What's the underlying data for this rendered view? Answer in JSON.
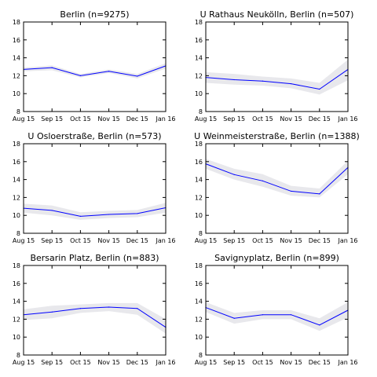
{
  "chart_data": [
    {
      "type": "line",
      "title": "Berlin (n=9275)",
      "x": [
        "Aug 15",
        "Sep 15",
        "Oct 15",
        "Nov 15",
        "Dec 15",
        "Jan 16"
      ],
      "y": [
        12.7,
        12.9,
        12.0,
        12.5,
        11.95,
        13.1
      ],
      "band_low": [
        12.5,
        12.6,
        11.8,
        12.3,
        11.7,
        12.8
      ],
      "band_high": [
        12.9,
        13.15,
        12.2,
        12.7,
        12.2,
        13.4
      ],
      "ylim": [
        8,
        18
      ],
      "yticks": [
        8,
        10,
        12,
        14,
        16,
        18
      ]
    },
    {
      "type": "line",
      "title": "U Rathaus Neukölln, Berlin (n=507)",
      "x": [
        "Aug 15",
        "Sep 15",
        "Oct 15",
        "Nov 15",
        "Dec 15",
        "Jan 16"
      ],
      "y": [
        11.8,
        11.55,
        11.4,
        11.1,
        10.5,
        12.7
      ],
      "band_low": [
        11.2,
        11.0,
        10.9,
        10.6,
        9.9,
        11.5
      ],
      "band_high": [
        12.4,
        12.2,
        11.9,
        11.7,
        11.2,
        13.8
      ],
      "ylim": [
        8,
        18
      ],
      "yticks": [
        8,
        10,
        12,
        14,
        16,
        18
      ]
    },
    {
      "type": "line",
      "title": "U Osloerstraße, Berlin (n=573)",
      "x": [
        "Aug 15",
        "Sep 15",
        "Oct 15",
        "Nov 15",
        "Dec 15",
        "Jan 16"
      ],
      "y": [
        10.8,
        10.55,
        9.9,
        10.1,
        10.2,
        10.85
      ],
      "band_low": [
        10.3,
        10.0,
        9.5,
        9.7,
        9.8,
        10.3
      ],
      "band_high": [
        11.3,
        11.1,
        10.35,
        10.5,
        10.6,
        11.4
      ],
      "ylim": [
        8,
        18
      ],
      "yticks": [
        8,
        10,
        12,
        14,
        16,
        18
      ]
    },
    {
      "type": "line",
      "title": "U Weinmeisterstraße, Berlin (n=1388)",
      "x": [
        "Aug 15",
        "Sep 15",
        "Oct 15",
        "Nov 15",
        "Dec 15",
        "Jan 16"
      ],
      "y": [
        15.75,
        14.55,
        13.85,
        12.7,
        12.4,
        15.35
      ],
      "band_low": [
        15.2,
        14.0,
        13.2,
        12.2,
        12.0,
        14.6
      ],
      "band_high": [
        16.3,
        15.2,
        14.6,
        13.3,
        13.0,
        16.1
      ],
      "ylim": [
        8,
        18
      ],
      "yticks": [
        8,
        10,
        12,
        14,
        16,
        18
      ]
    },
    {
      "type": "line",
      "title": "Bersarin Platz, Berlin (n=883)",
      "x": [
        "Aug 15",
        "Sep 15",
        "Oct 15",
        "Nov 15",
        "Dec 15",
        "Jan 16"
      ],
      "y": [
        12.5,
        12.8,
        13.2,
        13.35,
        13.2,
        11.1
      ],
      "band_low": [
        11.9,
        12.1,
        12.7,
        12.9,
        12.5,
        10.4
      ],
      "band_high": [
        13.1,
        13.5,
        13.65,
        13.8,
        13.8,
        12.0
      ],
      "ylim": [
        8,
        18
      ],
      "yticks": [
        8,
        10,
        12,
        14,
        16,
        18
      ]
    },
    {
      "type": "line",
      "title": "Savignyplatz, Berlin (n=899)",
      "x": [
        "Aug 15",
        "Sep 15",
        "Oct 15",
        "Nov 15",
        "Dec 15",
        "Jan 16"
      ],
      "y": [
        13.3,
        12.1,
        12.5,
        12.5,
        11.35,
        13.0
      ],
      "band_low": [
        12.8,
        11.5,
        12.0,
        12.0,
        10.7,
        12.2
      ],
      "band_high": [
        13.9,
        12.7,
        13.0,
        13.0,
        12.1,
        13.9
      ],
      "ylim": [
        8,
        18
      ],
      "yticks": [
        8,
        10,
        12,
        14,
        16,
        18
      ]
    }
  ],
  "colors": {
    "line": "#0000ff",
    "band": "#e8e8ec",
    "axis": "#000000"
  }
}
